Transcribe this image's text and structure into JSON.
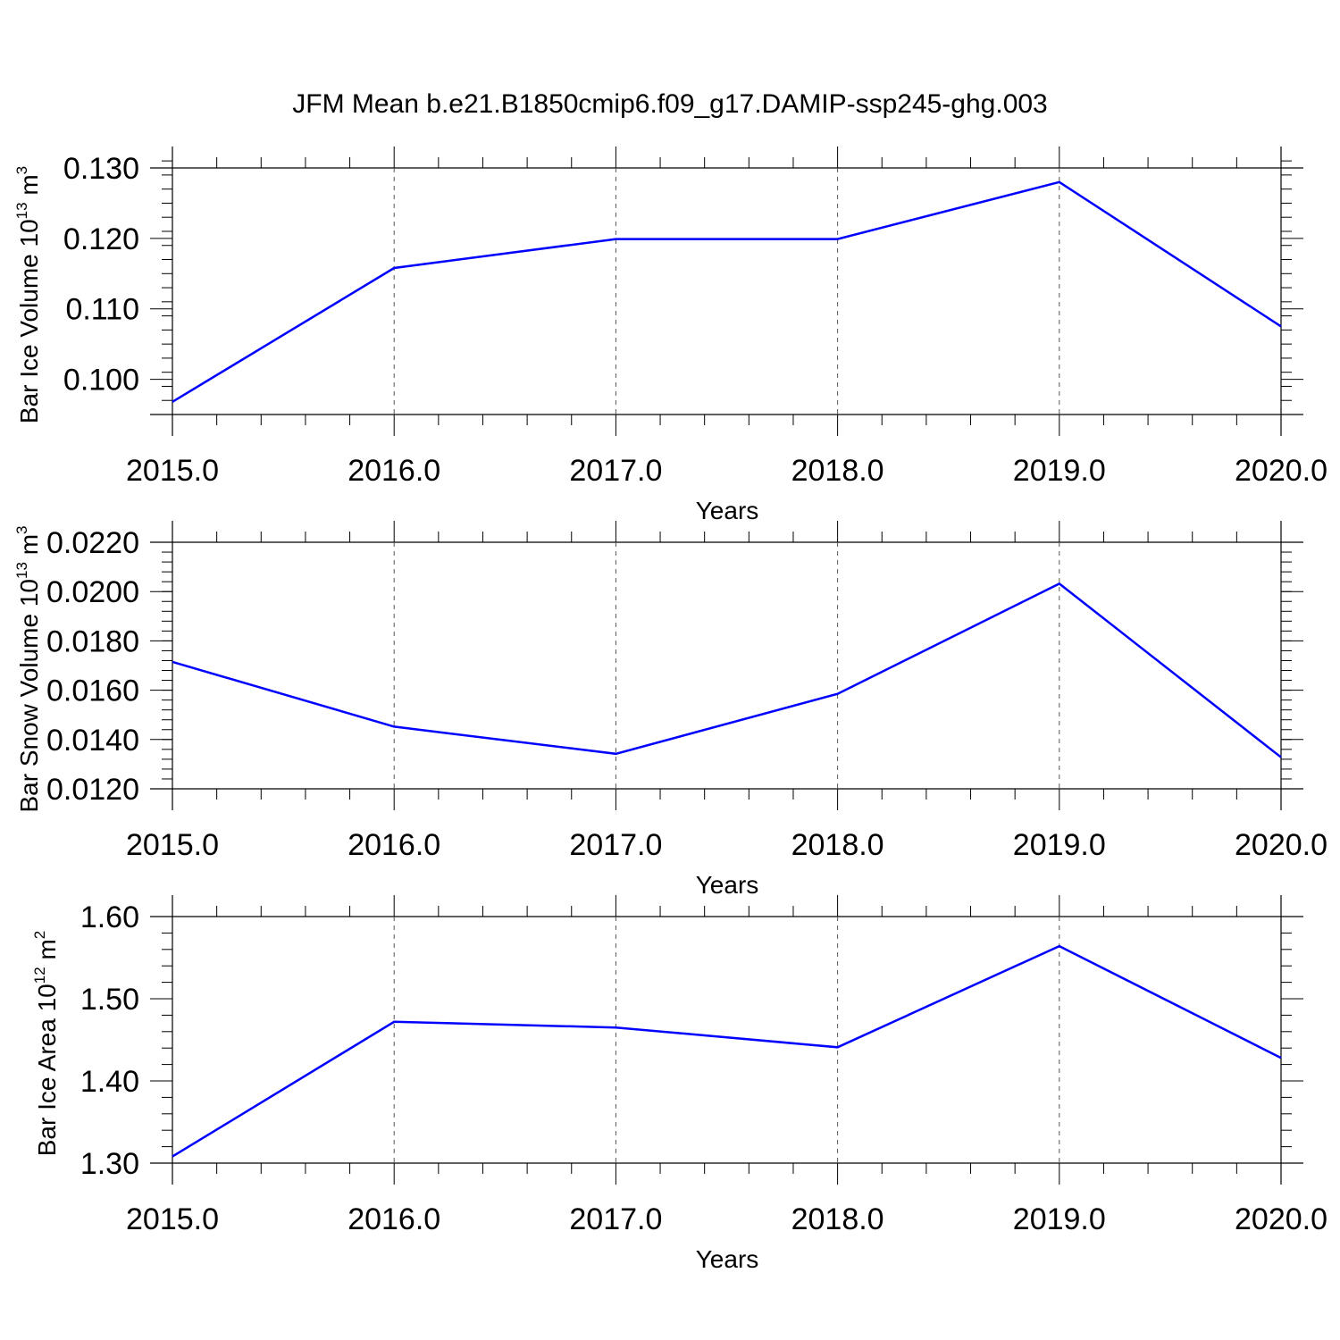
{
  "figure": {
    "title": "JFM Mean b.e21.B1850cmip6.f09_g17.DAMIP-ssp245-ghg.003",
    "line_color": "#0000ff"
  },
  "chart_data": [
    {
      "type": "line",
      "title": "",
      "xlabel": "Years",
      "ylabel": "Bar Ice Volume 10",
      "ylabel_sup": "13",
      "ylabel_unit": "m",
      "ylabel_unit_sup": "3",
      "x": [
        2015,
        2016,
        2017,
        2018,
        2019,
        2020
      ],
      "x_tick_labels": [
        "2015.0",
        "2016.0",
        "2017.0",
        "2018.0",
        "2019.0",
        "2020.0"
      ],
      "xlim": [
        2014.9,
        2020.1
      ],
      "series": [
        {
          "values": [
            0.0968,
            0.1158,
            0.1199,
            0.1199,
            0.128,
            0.1075
          ]
        }
      ],
      "y_ticks": [
        0.1,
        0.11,
        0.12,
        0.13
      ],
      "y_tick_labels": [
        "0.100",
        "0.110",
        "0.120",
        "0.130"
      ],
      "y_minor_step": 0.002,
      "ylim": [
        0.095,
        0.13
      ],
      "x_gridlines": "dashed, at each year",
      "legend": "none"
    },
    {
      "type": "line",
      "title": "",
      "xlabel": "Years",
      "ylabel": "Bar Snow Volume 10",
      "ylabel_sup": "13",
      "ylabel_unit": "m",
      "ylabel_unit_sup": "3",
      "x": [
        2015,
        2016,
        2017,
        2018,
        2019,
        2020
      ],
      "x_tick_labels": [
        "2015.0",
        "2016.0",
        "2017.0",
        "2018.0",
        "2019.0",
        "2020.0"
      ],
      "xlim": [
        2014.9,
        2020.1
      ],
      "series": [
        {
          "values": [
            0.01715,
            0.01452,
            0.01342,
            0.01585,
            0.02032,
            0.01328
          ]
        }
      ],
      "y_ticks": [
        0.012,
        0.014,
        0.016,
        0.018,
        0.02,
        0.022
      ],
      "y_tick_labels": [
        "0.0120",
        "0.0140",
        "0.0160",
        "0.0180",
        "0.0200",
        "0.0220"
      ],
      "y_minor_step": 0.0004,
      "ylim": [
        0.012,
        0.022
      ],
      "x_gridlines": "dashed, at each year",
      "legend": "none"
    },
    {
      "type": "line",
      "title": "",
      "xlabel": "Years",
      "ylabel": "Bar Ice Area 10",
      "ylabel_sup": "12",
      "ylabel_unit": "m",
      "ylabel_unit_sup": "2",
      "x": [
        2015,
        2016,
        2017,
        2018,
        2019,
        2020
      ],
      "x_tick_labels": [
        "2015.0",
        "2016.0",
        "2017.0",
        "2018.0",
        "2019.0",
        "2020.0"
      ],
      "xlim": [
        2014.9,
        2020.1
      ],
      "series": [
        {
          "values": [
            1.308,
            1.472,
            1.465,
            1.441,
            1.564,
            1.428
          ]
        }
      ],
      "y_ticks": [
        1.3,
        1.4,
        1.5,
        1.6
      ],
      "y_tick_labels": [
        "1.30",
        "1.40",
        "1.50",
        "1.60"
      ],
      "y_minor_step": 0.02,
      "ylim": [
        1.3,
        1.6
      ],
      "x_gridlines": "dashed, at each year",
      "legend": "none"
    }
  ]
}
